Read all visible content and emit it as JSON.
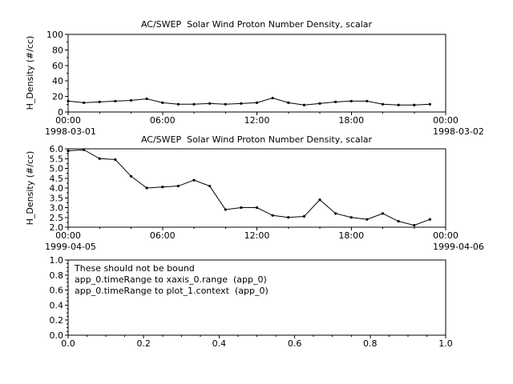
{
  "colors": {
    "foreground": "#000000",
    "background": "#ffffff"
  },
  "chart_data": [
    {
      "type": "line",
      "title": "AC/SWEP  Solar Wind Proton Number Density, scalar",
      "ylabel": "H_Density (#/cc)",
      "xlabel": "",
      "date_left": "1998-03-01",
      "date_right": "1998-03-02",
      "xlim": [
        0,
        24
      ],
      "ylim": [
        0,
        100
      ],
      "x_ticks": [
        0,
        6,
        12,
        18,
        24
      ],
      "x_tick_labels": [
        "00:00",
        "06:00",
        "12:00",
        "18:00",
        "00:00"
      ],
      "x_minor_step": 2,
      "y_ticks": [
        0,
        20,
        40,
        60,
        80,
        100
      ],
      "y_tick_labels": [
        "0",
        "20",
        "40",
        "60",
        "80",
        "100"
      ],
      "y_minor_step": 10,
      "grid": false,
      "x": [
        0,
        1,
        2,
        3,
        4,
        5,
        6,
        7,
        8,
        9,
        10,
        11,
        12,
        13,
        14,
        15,
        16,
        17,
        18,
        19,
        20,
        21,
        22,
        23
      ],
      "values": [
        14,
        12,
        13,
        14,
        15,
        17,
        12,
        10,
        10,
        11,
        10,
        11,
        12,
        18,
        12,
        9,
        11,
        13,
        14,
        14,
        10,
        9,
        9,
        10
      ]
    },
    {
      "type": "line",
      "title": "AC/SWEP  Solar Wind Proton Number Density, scalar",
      "ylabel": "H_Density (#/cc)",
      "xlabel": "",
      "date_left": "1999-04-05",
      "date_right": "1999-04-06",
      "xlim": [
        0,
        24
      ],
      "ylim": [
        2.0,
        6.0
      ],
      "x_ticks": [
        0,
        6,
        12,
        18,
        24
      ],
      "x_tick_labels": [
        "00:00",
        "06:00",
        "12:00",
        "18:00",
        "00:00"
      ],
      "x_minor_step": 2,
      "y_ticks": [
        2.0,
        2.5,
        3.0,
        3.5,
        4.0,
        4.5,
        5.0,
        5.5,
        6.0
      ],
      "y_tick_labels": [
        "2.0",
        "2.5",
        "3.0",
        "3.5",
        "4.0",
        "4.5",
        "5.0",
        "5.5",
        "6.0"
      ],
      "y_minor_step": 0.25,
      "grid": false,
      "x": [
        0,
        1,
        2,
        3,
        4,
        5,
        6,
        7,
        8,
        9,
        10,
        11,
        12,
        13,
        14,
        15,
        16,
        17,
        18,
        19,
        20,
        21,
        22,
        23
      ],
      "values": [
        5.9,
        5.95,
        5.5,
        5.45,
        4.6,
        4.0,
        4.05,
        4.1,
        4.4,
        4.1,
        2.9,
        3.0,
        3.0,
        2.6,
        2.5,
        2.55,
        3.4,
        2.7,
        2.5,
        2.4,
        2.7,
        2.3,
        2.1,
        2.4
      ]
    },
    {
      "type": "line",
      "title": "",
      "ylabel": "",
      "xlabel": "",
      "xlim": [
        0,
        1
      ],
      "ylim": [
        0,
        1
      ],
      "x_ticks": [
        0,
        0.2,
        0.4,
        0.6,
        0.8,
        1.0
      ],
      "x_tick_labels": [
        "0.0",
        "0.2",
        "0.4",
        "0.6",
        "0.8",
        "1.0"
      ],
      "x_minor_step": 0.05,
      "y_ticks": [
        0,
        0.2,
        0.4,
        0.6,
        0.8,
        1.0
      ],
      "y_tick_labels": [
        "0.0",
        "0.2",
        "0.4",
        "0.6",
        "0.8",
        "1.0"
      ],
      "y_minor_step": 0.05,
      "grid": false,
      "x": [],
      "values": [],
      "annotations": [
        "These should not be bound",
        "app_0.timeRange to xaxis_0.range  (app_0)",
        "app_0.timeRange to plot_1.context  (app_0)"
      ]
    }
  ]
}
